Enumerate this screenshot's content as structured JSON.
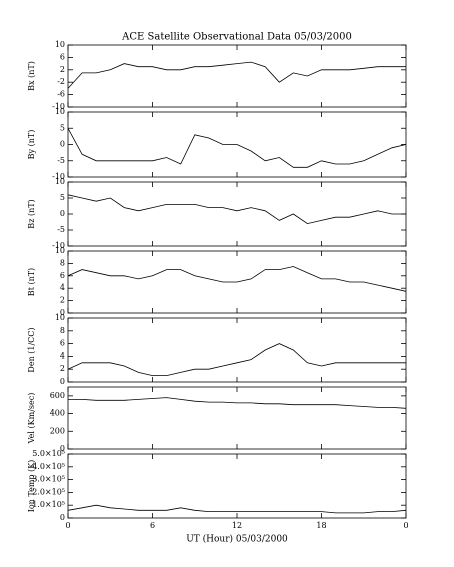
{
  "chart_data": [
    {
      "type": "line",
      "title": "ACE Satellite Observational Data   05/03/2000",
      "ylabel": "Bx (nT)",
      "color": "#000000",
      "x": [
        0,
        1,
        2,
        3,
        4,
        5,
        6,
        7,
        8,
        9,
        10,
        11,
        12,
        13,
        14,
        15,
        16,
        17,
        18,
        19,
        20,
        21,
        22,
        23,
        24
      ],
      "xlim": [
        0,
        24
      ],
      "xticks": [
        0,
        6,
        12,
        18,
        {
          "value": 24,
          "label": "0"
        }
      ],
      "values": [
        -4,
        1,
        1,
        2,
        4,
        3,
        3,
        2,
        2,
        3,
        3,
        3.5,
        4,
        4.5,
        3,
        -2,
        1,
        0,
        2,
        2,
        2,
        2.5,
        3,
        3,
        3
      ],
      "ylim": [
        -10,
        10
      ],
      "yticks": [
        -10,
        -6,
        -2,
        2,
        6,
        10
      ]
    },
    {
      "type": "line",
      "ylabel": "By (nT)",
      "color": "#000000",
      "x": [
        0,
        1,
        2,
        3,
        4,
        5,
        6,
        7,
        8,
        9,
        10,
        11,
        12,
        13,
        14,
        15,
        16,
        17,
        18,
        19,
        20,
        21,
        22,
        23,
        24
      ],
      "xlim": [
        0,
        24
      ],
      "xticks": [
        0,
        6,
        12,
        18,
        {
          "value": 24,
          "label": "0"
        }
      ],
      "values": [
        5,
        -3,
        -5,
        -5,
        -5,
        -5,
        -5,
        -4,
        -6,
        3,
        2,
        0,
        0,
        -2,
        -5,
        -4,
        -7,
        -7,
        -5,
        -6,
        -6,
        -5,
        -3,
        -1,
        0
      ],
      "ylim": [
        -10,
        10
      ],
      "yticks": [
        -10,
        -5,
        0,
        5,
        10
      ]
    },
    {
      "type": "line",
      "ylabel": "Bz (nT)",
      "color": "#000000",
      "x": [
        0,
        1,
        2,
        3,
        4,
        5,
        6,
        7,
        8,
        9,
        10,
        11,
        12,
        13,
        14,
        15,
        16,
        17,
        18,
        19,
        20,
        21,
        22,
        23,
        24
      ],
      "xlim": [
        0,
        24
      ],
      "xticks": [
        0,
        6,
        12,
        18,
        {
          "value": 24,
          "label": "0"
        }
      ],
      "values": [
        6,
        5,
        4,
        5,
        2,
        1,
        2,
        3,
        3,
        3,
        2,
        2,
        1,
        2,
        1,
        -2,
        0,
        -3,
        -2,
        -1,
        -1,
        0,
        1,
        0,
        0
      ],
      "ylim": [
        -10,
        10
      ],
      "yticks": [
        -10,
        -5,
        0,
        5,
        10
      ]
    },
    {
      "type": "line",
      "ylabel": "Bt (nT)",
      "color": "#000000",
      "x": [
        0,
        1,
        2,
        3,
        4,
        5,
        6,
        7,
        8,
        9,
        10,
        11,
        12,
        13,
        14,
        15,
        16,
        17,
        18,
        19,
        20,
        21,
        22,
        23,
        24
      ],
      "xlim": [
        0,
        24
      ],
      "xticks": [
        0,
        6,
        12,
        18,
        {
          "value": 24,
          "label": "0"
        }
      ],
      "values": [
        6,
        7,
        6.5,
        6,
        6,
        5.5,
        6,
        7,
        7,
        6,
        5.5,
        5,
        5,
        5.5,
        7,
        7,
        7.5,
        6.5,
        5.5,
        5.5,
        5,
        5,
        4.5,
        4,
        3.5
      ],
      "ylim": [
        0,
        10
      ],
      "yticks": [
        0,
        2,
        4,
        6,
        8,
        10
      ]
    },
    {
      "type": "line",
      "ylabel": "Den (1/CC)",
      "color": "#000000",
      "x": [
        0,
        1,
        2,
        3,
        4,
        5,
        6,
        7,
        8,
        9,
        10,
        11,
        12,
        13,
        14,
        15,
        16,
        17,
        18,
        19,
        20,
        21,
        22,
        23,
        24
      ],
      "xlim": [
        0,
        24
      ],
      "xticks": [
        0,
        6,
        12,
        18,
        {
          "value": 24,
          "label": "0"
        }
      ],
      "values": [
        2,
        3,
        3,
        3,
        2.5,
        1.5,
        1,
        1,
        1.5,
        2,
        2,
        2.5,
        3,
        3.5,
        5,
        6,
        5,
        3,
        2.5,
        3,
        3,
        3,
        3,
        3,
        3
      ],
      "ylim": [
        0,
        10
      ],
      "yticks": [
        0,
        2,
        4,
        6,
        8,
        10
      ]
    },
    {
      "type": "line",
      "ylabel": "Vel (Km/sec)",
      "color": "#000000",
      "x": [
        0,
        1,
        2,
        3,
        4,
        5,
        6,
        7,
        8,
        9,
        10,
        11,
        12,
        13,
        14,
        15,
        16,
        17,
        18,
        19,
        20,
        21,
        22,
        23,
        24
      ],
      "xlim": [
        0,
        24
      ],
      "xticks": [
        0,
        6,
        12,
        18,
        {
          "value": 24,
          "label": "0"
        }
      ],
      "values": [
        560,
        560,
        550,
        550,
        550,
        560,
        570,
        580,
        560,
        540,
        530,
        530,
        520,
        520,
        510,
        510,
        500,
        500,
        500,
        500,
        490,
        480,
        470,
        470,
        460
      ],
      "ylim": [
        0,
        700
      ],
      "yticks": [
        0,
        200,
        400,
        600
      ]
    },
    {
      "type": "line",
      "ylabel": "Ion Temp (K)",
      "color": "#000000",
      "xlabel": "UT (Hour)   05/03/2000",
      "x": [
        0,
        1,
        2,
        3,
        4,
        5,
        6,
        7,
        8,
        9,
        10,
        11,
        12,
        13,
        14,
        15,
        16,
        17,
        18,
        19,
        20,
        21,
        22,
        23,
        24
      ],
      "xlim": [
        0,
        24
      ],
      "xticks": [
        0,
        6,
        12,
        18,
        {
          "value": 24,
          "label": "0"
        }
      ],
      "values": [
        60000,
        80000,
        100000,
        80000,
        70000,
        60000,
        60000,
        60000,
        80000,
        60000,
        50000,
        50000,
        50000,
        50000,
        50000,
        50000,
        50000,
        50000,
        50000,
        40000,
        40000,
        40000,
        50000,
        50000,
        60000
      ],
      "ylim": [
        0,
        500000
      ],
      "yticks": [
        0,
        {
          "value": 100000,
          "label": "1.0×10⁵"
        },
        {
          "value": 200000,
          "label": "2.0×10⁵"
        },
        {
          "value": 300000,
          "label": "3.0×10⁵"
        },
        {
          "value": 400000,
          "label": "4.0×10⁵"
        },
        {
          "value": 500000,
          "label": "5.0×10⁵"
        }
      ]
    }
  ]
}
